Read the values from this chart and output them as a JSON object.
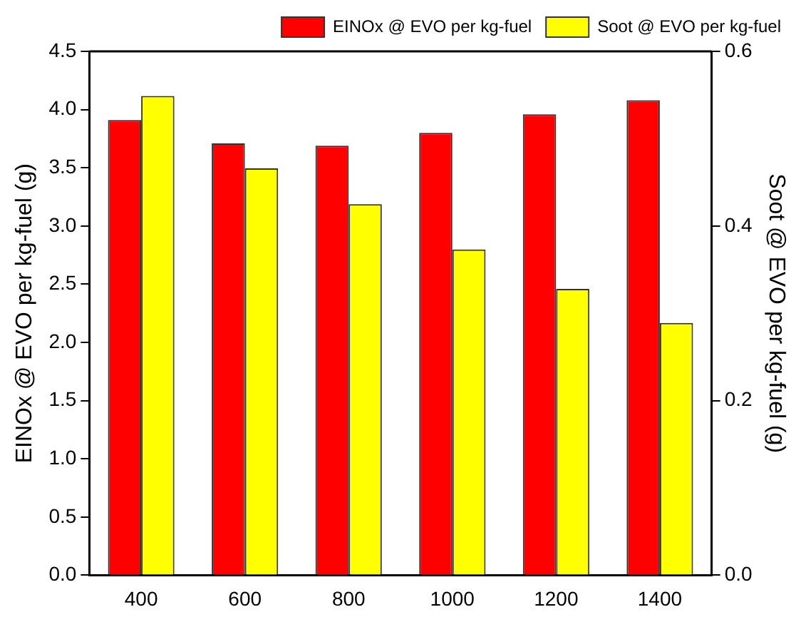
{
  "chart_data": {
    "type": "bar",
    "ylabel": "EINOx @ EVO per kg-fuel (g)",
    "y2label": "Soot @ EVO per kg-fuel (g)",
    "categories": [
      "400",
      "600",
      "800",
      "1000",
      "1200",
      "1400"
    ],
    "series": [
      {
        "name": "EINOx @ EVO per kg-fuel",
        "color": "#ff0000",
        "values": [
          3.91,
          3.71,
          3.69,
          3.8,
          3.96,
          4.08
        ]
      },
      {
        "name": "Soot @ EVO per kg-fuel",
        "color": "#ffff00",
        "axis": "y2",
        "values": [
          0.549,
          0.466,
          0.425,
          0.373,
          0.328,
          0.289
        ]
      }
    ],
    "ylim": [
      0,
      4.5
    ],
    "yticks": [
      {
        "value": 0,
        "label": "0.0"
      },
      0.5,
      {
        "value": 1,
        "label": "1.0"
      },
      1.5,
      {
        "value": 2,
        "label": "2.0"
      },
      2.5,
      {
        "value": 3,
        "label": "3.0"
      },
      3.5,
      {
        "value": 4,
        "label": "4.0"
      },
      4.5
    ],
    "y2lim": [
      0,
      0.6
    ],
    "y2ticks": [
      {
        "value": 0,
        "label": "0.0"
      },
      0.2,
      0.4,
      0.6
    ],
    "legend": "top right",
    "grid": false
  }
}
